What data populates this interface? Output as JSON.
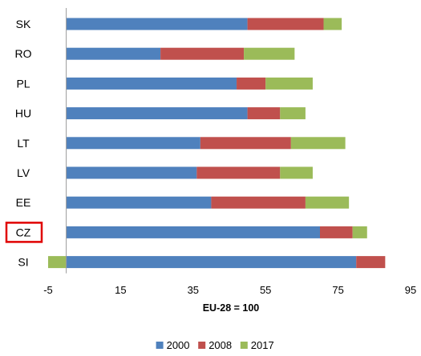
{
  "chart_data": {
    "type": "bar",
    "orientation": "horizontal",
    "stacked": true,
    "categories": [
      "SK",
      "RO",
      "PL",
      "HU",
      "LT",
      "LV",
      "EE",
      "CZ",
      "SI"
    ],
    "highlighted_category": "CZ",
    "series": [
      {
        "name": "2000",
        "color": "#4F81BD",
        "values": [
          50,
          26,
          47,
          50,
          37,
          36,
          40,
          70,
          80
        ]
      },
      {
        "name": "2008",
        "color": "#C0504D",
        "values": [
          21,
          23,
          8,
          9,
          25,
          23,
          26,
          9,
          8
        ]
      },
      {
        "name": "2017",
        "color": "#9BBB59",
        "values": [
          5,
          14,
          13,
          7,
          15,
          9,
          12,
          4,
          -5
        ]
      }
    ],
    "xlim": [
      -5,
      95
    ],
    "xticks": [
      "-5",
      "15",
      "35",
      "55",
      "75",
      "95"
    ],
    "xlabel": "EU-28 = 100",
    "ylabel": "",
    "title": "",
    "grid": false,
    "legend_position": "bottom"
  }
}
